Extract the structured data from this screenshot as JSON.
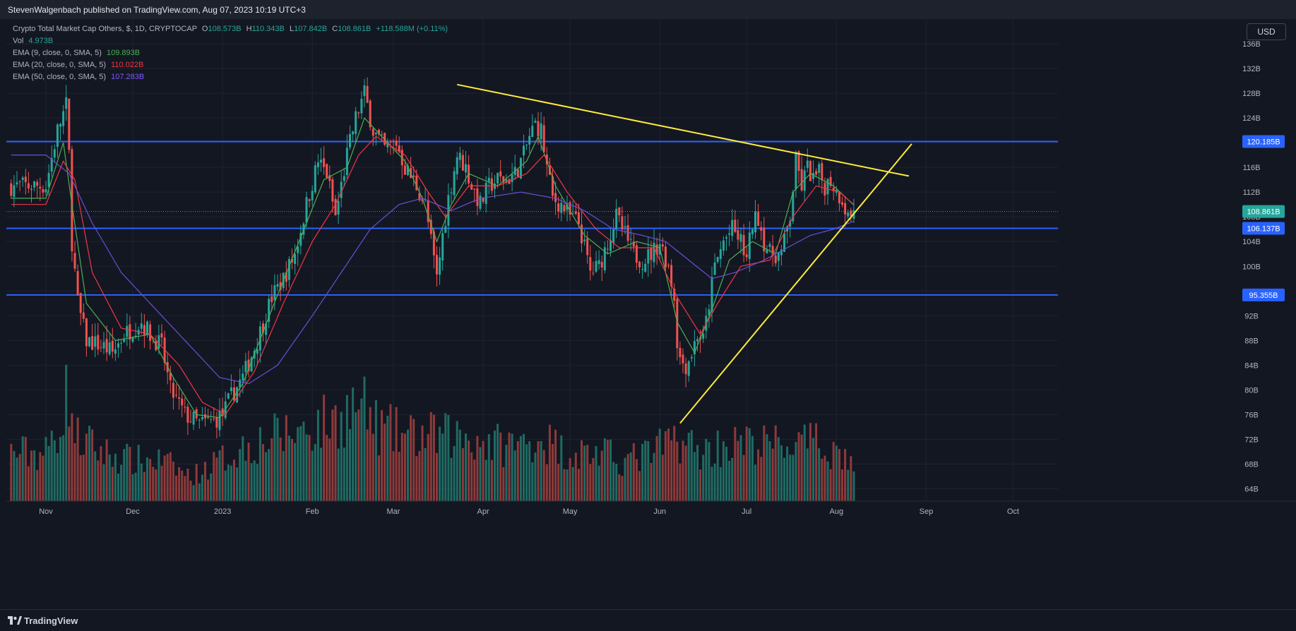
{
  "header": {
    "publisher": "StevenWalgenbach published on TradingView.com, Aug 07, 2023 10:19 UTC+3"
  },
  "legend": {
    "symbol": "Crypto Total Market Cap Others, $, 1D, CRYPTOCAP",
    "ohlc": {
      "o_label": "O",
      "o": "108.573B",
      "h_label": "H",
      "h": "110.343B",
      "l_label": "L",
      "l": "107.842B",
      "c_label": "C",
      "c": "108.861B",
      "change": "+118.588M (+0.11%)"
    },
    "vol_label": "Vol",
    "vol_value": "4.973B",
    "ema9_label": "EMA (9, close, 0, SMA, 5)",
    "ema9_value": "109.893B",
    "ema20_label": "EMA (20, close, 0, SMA, 5)",
    "ema20_value": "110.022B",
    "ema50_label": "EMA (50, close, 0, SMA, 5)",
    "ema50_value": "107.283B"
  },
  "currency_button": "USD",
  "footer": {
    "brand": "TradingView",
    "brand_icon": "tradingview-logo-icon"
  },
  "colors": {
    "background": "#131722",
    "up": "#26a69a",
    "down": "#ef5350",
    "vol_up": "#1f6b63",
    "vol_down": "#8e3a3a",
    "ema9": "#4caf50",
    "ema20": "#f23645",
    "ema50": "#6a4fd6",
    "level": "#2962ff",
    "trend": "#ffeb3b",
    "grid": "#1f2330",
    "text": "#b2b5be"
  },
  "chart_data": {
    "type": "candlestick",
    "y_axis": {
      "min": 62,
      "max": 140,
      "ticks": [
        "64B",
        "68B",
        "72B",
        "76B",
        "80B",
        "84B",
        "88B",
        "92B",
        "96B",
        "100B",
        "104B",
        "108B",
        "112B",
        "116B",
        "120B",
        "124B",
        "128B",
        "132B",
        "136B"
      ],
      "unit": "B"
    },
    "x_axis": {
      "ticks": [
        {
          "label": "Nov",
          "day": 0
        },
        {
          "label": "Dec",
          "day": 30
        },
        {
          "label": "2023",
          "day": 61
        },
        {
          "label": "Feb",
          "day": 92
        },
        {
          "label": "Mar",
          "day": 120
        },
        {
          "label": "Apr",
          "day": 151
        },
        {
          "label": "May",
          "day": 181
        },
        {
          "label": "Jun",
          "day": 212
        },
        {
          "label": "Jul",
          "day": 242
        },
        {
          "label": "Aug",
          "day": 273
        },
        {
          "label": "Sep",
          "day": 304
        },
        {
          "label": "Oct",
          "day": 334
        }
      ]
    },
    "price_labels": [
      {
        "value": 120.185,
        "text": "120.185B",
        "type": "level"
      },
      {
        "value": 108.861,
        "text": "108.861B",
        "type": "current"
      },
      {
        "value": 106.137,
        "text": "106.137B",
        "type": "level"
      },
      {
        "value": 95.355,
        "text": "95.355B",
        "type": "level"
      }
    ],
    "horizontal_levels": [
      120.185,
      106.137,
      95.355
    ],
    "trendlines": [
      {
        "name": "descending-resistance",
        "from": {
          "day": 142,
          "value": 129.4
        },
        "to": {
          "day": 298,
          "value": 114.6
        }
      },
      {
        "name": "ascending-support",
        "from": {
          "day": 219,
          "value": 74.6
        },
        "to": {
          "day": 299,
          "value": 119.8
        }
      }
    ],
    "series_names": [
      "Vol",
      "EMA (9, close, 0, SMA, 5)",
      "EMA (20, close, 0, SMA, 5)",
      "EMA (50, close, 0, SMA, 5)"
    ],
    "candle_start_day": -12,
    "close_path": [
      [
        0,
        113
      ],
      [
        4,
        122
      ],
      [
        7,
        126
      ],
      [
        8,
        118
      ],
      [
        9,
        104
      ],
      [
        11,
        94
      ],
      [
        14,
        88
      ],
      [
        20,
        87
      ],
      [
        23,
        86
      ],
      [
        27,
        89
      ],
      [
        30,
        90
      ],
      [
        33,
        91
      ],
      [
        36,
        89
      ],
      [
        40,
        87
      ],
      [
        43,
        80
      ],
      [
        48,
        76
      ],
      [
        53,
        74.5
      ],
      [
        58,
        75
      ],
      [
        61,
        76
      ],
      [
        64,
        79
      ],
      [
        68,
        82
      ],
      [
        73,
        88
      ],
      [
        78,
        95
      ],
      [
        82,
        98
      ],
      [
        86,
        102
      ],
      [
        90,
        110
      ],
      [
        94,
        117
      ],
      [
        97,
        115
      ],
      [
        100,
        108
      ],
      [
        104,
        118
      ],
      [
        107,
        124
      ],
      [
        110,
        128
      ],
      [
        113,
        122
      ],
      [
        117,
        119
      ],
      [
        121,
        120
      ],
      [
        124,
        116
      ],
      [
        128,
        113
      ],
      [
        131,
        110
      ],
      [
        133,
        104
      ],
      [
        135,
        98
      ],
      [
        137,
        105
      ],
      [
        139,
        111
      ],
      [
        142,
        118
      ],
      [
        145,
        116
      ],
      [
        147,
        113
      ],
      [
        150,
        110
      ],
      [
        153,
        113
      ],
      [
        156,
        114
      ],
      [
        159,
        114
      ],
      [
        162,
        115
      ],
      [
        165,
        118
      ],
      [
        167,
        121
      ],
      [
        169,
        123
      ],
      [
        171,
        122
      ],
      [
        173,
        116
      ],
      [
        175,
        111
      ],
      [
        178,
        110
      ],
      [
        181,
        108
      ],
      [
        184,
        107
      ],
      [
        186,
        103
      ],
      [
        188,
        99
      ],
      [
        191,
        100
      ],
      [
        194,
        104
      ],
      [
        197,
        108
      ],
      [
        200,
        105
      ],
      [
        203,
        102
      ],
      [
        206,
        101
      ],
      [
        209,
        102
      ],
      [
        212,
        104
      ],
      [
        215,
        100
      ],
      [
        217,
        95
      ],
      [
        218,
        88
      ],
      [
        219,
        85
      ],
      [
        221,
        84
      ],
      [
        223,
        86
      ],
      [
        225,
        89
      ],
      [
        227,
        88
      ],
      [
        229,
        94
      ],
      [
        231,
        100
      ],
      [
        234,
        104
      ],
      [
        237,
        106
      ],
      [
        240,
        104
      ],
      [
        242,
        101
      ],
      [
        244,
        107
      ],
      [
        246,
        108
      ],
      [
        248,
        104
      ],
      [
        250,
        102
      ],
      [
        252,
        102
      ],
      [
        254,
        102
      ],
      [
        255,
        104
      ],
      [
        257,
        108
      ],
      [
        259,
        117
      ],
      [
        261,
        113
      ],
      [
        263,
        116
      ],
      [
        265,
        114
      ],
      [
        267,
        115
      ],
      [
        269,
        113
      ],
      [
        271,
        114
      ],
      [
        273,
        112
      ],
      [
        275,
        111
      ],
      [
        277,
        108
      ],
      [
        279,
        108.9
      ]
    ],
    "ema9_path": [
      [
        0,
        111
      ],
      [
        6,
        120
      ],
      [
        9,
        110
      ],
      [
        14,
        94
      ],
      [
        24,
        88
      ],
      [
        36,
        89
      ],
      [
        44,
        82
      ],
      [
        52,
        76
      ],
      [
        60,
        75.5
      ],
      [
        68,
        81
      ],
      [
        78,
        93
      ],
      [
        90,
        107
      ],
      [
        96,
        114
      ],
      [
        104,
        116
      ],
      [
        110,
        124
      ],
      [
        116,
        121
      ],
      [
        124,
        117
      ],
      [
        130,
        111
      ],
      [
        135,
        104
      ],
      [
        140,
        110
      ],
      [
        146,
        115
      ],
      [
        156,
        113
      ],
      [
        166,
        117
      ],
      [
        170,
        121
      ],
      [
        176,
        113
      ],
      [
        186,
        105
      ],
      [
        194,
        102
      ],
      [
        204,
        104
      ],
      [
        212,
        103
      ],
      [
        218,
        91
      ],
      [
        224,
        86
      ],
      [
        230,
        93
      ],
      [
        236,
        101
      ],
      [
        244,
        104
      ],
      [
        252,
        102
      ],
      [
        258,
        112
      ],
      [
        264,
        115
      ],
      [
        272,
        113
      ],
      [
        279,
        109.9
      ]
    ],
    "ema20_path": [
      [
        0,
        110
      ],
      [
        6,
        117
      ],
      [
        10,
        114
      ],
      [
        16,
        99
      ],
      [
        26,
        90
      ],
      [
        36,
        89
      ],
      [
        46,
        84
      ],
      [
        54,
        78
      ],
      [
        62,
        76
      ],
      [
        72,
        83
      ],
      [
        82,
        94
      ],
      [
        92,
        104
      ],
      [
        100,
        110
      ],
      [
        108,
        118
      ],
      [
        114,
        121
      ],
      [
        124,
        118
      ],
      [
        132,
        112
      ],
      [
        138,
        108
      ],
      [
        146,
        113
      ],
      [
        156,
        113
      ],
      [
        166,
        115
      ],
      [
        172,
        118
      ],
      [
        180,
        112
      ],
      [
        190,
        106
      ],
      [
        198,
        103
      ],
      [
        210,
        103
      ],
      [
        218,
        95
      ],
      [
        226,
        89
      ],
      [
        232,
        94
      ],
      [
        240,
        100
      ],
      [
        250,
        101
      ],
      [
        258,
        108
      ],
      [
        266,
        113
      ],
      [
        274,
        112
      ],
      [
        279,
        110
      ]
    ],
    "ema50_path": [
      [
        0,
        118
      ],
      [
        8,
        115
      ],
      [
        16,
        107
      ],
      [
        26,
        99
      ],
      [
        38,
        93
      ],
      [
        50,
        87
      ],
      [
        60,
        82
      ],
      [
        70,
        81
      ],
      [
        80,
        84
      ],
      [
        92,
        92
      ],
      [
        102,
        99
      ],
      [
        112,
        106
      ],
      [
        122,
        110
      ],
      [
        130,
        111
      ],
      [
        140,
        109
      ],
      [
        150,
        111
      ],
      [
        164,
        112
      ],
      [
        176,
        111
      ],
      [
        186,
        109
      ],
      [
        196,
        106
      ],
      [
        206,
        105
      ],
      [
        214,
        104
      ],
      [
        222,
        101
      ],
      [
        230,
        98
      ],
      [
        238,
        99
      ],
      [
        248,
        101
      ],
      [
        256,
        103
      ],
      [
        264,
        105
      ],
      [
        272,
        106
      ],
      [
        279,
        107.3
      ]
    ],
    "volume_profile": [
      [
        0,
        6
      ],
      [
        4,
        9
      ],
      [
        8,
        14
      ],
      [
        10,
        8
      ],
      [
        20,
        6
      ],
      [
        30,
        5
      ],
      [
        40,
        5
      ],
      [
        50,
        3
      ],
      [
        60,
        5
      ],
      [
        70,
        7
      ],
      [
        80,
        8
      ],
      [
        90,
        9
      ],
      [
        100,
        10
      ],
      [
        108,
        12
      ],
      [
        115,
        9
      ],
      [
        125,
        8
      ],
      [
        135,
        8
      ],
      [
        145,
        8
      ],
      [
        155,
        7
      ],
      [
        165,
        7
      ],
      [
        170,
        8
      ],
      [
        180,
        6
      ],
      [
        190,
        6
      ],
      [
        200,
        5
      ],
      [
        210,
        6
      ],
      [
        218,
        8
      ],
      [
        226,
        6
      ],
      [
        234,
        7
      ],
      [
        242,
        7
      ],
      [
        250,
        7
      ],
      [
        258,
        7
      ],
      [
        266,
        7
      ],
      [
        274,
        6
      ],
      [
        279,
        4.5
      ]
    ],
    "volume_scale": 14
  }
}
